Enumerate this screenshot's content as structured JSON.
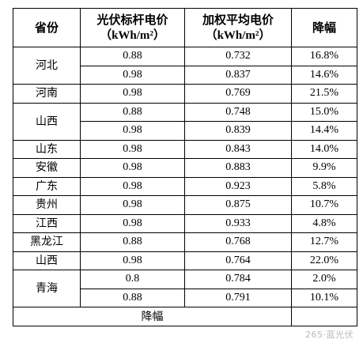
{
  "table": {
    "headers": [
      {
        "title": "省份",
        "unit": ""
      },
      {
        "title": "光伏标杆电价",
        "unit": "（kWh/m²）"
      },
      {
        "title": "加权平均电价",
        "unit": "（kWh/m²）"
      },
      {
        "title": "降幅",
        "unit": ""
      }
    ],
    "rows": [
      {
        "province": "河北",
        "benchmark": "0.88",
        "weighted": "0.732",
        "decline": "16.8%"
      },
      {
        "province": "",
        "benchmark": "0.98",
        "weighted": "0.837",
        "decline": "14.6%"
      },
      {
        "province": "河南",
        "benchmark": "0.98",
        "weighted": "0.769",
        "decline": "21.5%"
      },
      {
        "province": "山西",
        "benchmark": "0.88",
        "weighted": "0.748",
        "decline": "15.0%"
      },
      {
        "province": "",
        "benchmark": "0.98",
        "weighted": "0.839",
        "decline": "14.4%"
      },
      {
        "province": "山东",
        "benchmark": "0.98",
        "weighted": "0.843",
        "decline": "14.0%"
      },
      {
        "province": "安徽",
        "benchmark": "0.98",
        "weighted": "0.883",
        "decline": "9.9%"
      },
      {
        "province": "广东",
        "benchmark": "0.98",
        "weighted": "0.923",
        "decline": "5.8%"
      },
      {
        "province": "贵州",
        "benchmark": "0.98",
        "weighted": "0.875",
        "decline": "10.7%"
      },
      {
        "province": "江西",
        "benchmark": "0.98",
        "weighted": "0.933",
        "decline": "4.8%"
      },
      {
        "province": "黑龙江",
        "benchmark": "0.88",
        "weighted": "0.768",
        "decline": "12.7%"
      },
      {
        "province": "山西",
        "benchmark": "0.98",
        "weighted": "0.764",
        "decline": "22.0%"
      },
      {
        "province": "青海",
        "benchmark": "0.8",
        "weighted": "0.784",
        "decline": "2.0%"
      },
      {
        "province": "",
        "benchmark": "0.88",
        "weighted": "0.791",
        "decline": "10.1%"
      }
    ],
    "footer": {
      "label": "降幅",
      "value": ""
    }
  },
  "watermark": "265·蓝光伏"
}
